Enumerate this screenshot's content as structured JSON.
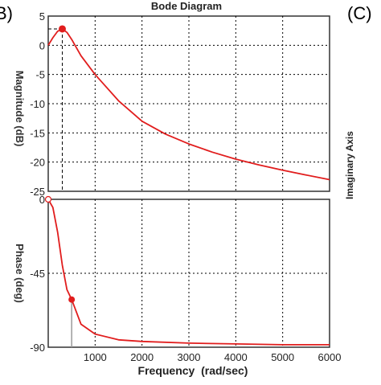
{
  "panel_labels": {
    "left": "B)",
    "right": "(C)"
  },
  "side_text": {
    "imaginary_axis": "Imaginary Axis"
  },
  "colors": {
    "curve": "#e11d1d",
    "grid": "#000000",
    "frame": "#333333",
    "marker_line": "#999999"
  },
  "chart_data": [
    {
      "type": "line",
      "title": "Bode Diagram",
      "xlabel": "",
      "ylabel": "Magnitude (dB)",
      "xlim": [
        0,
        6000
      ],
      "ylim": [
        -25,
        5
      ],
      "yticks": [
        5,
        0,
        -5,
        -10,
        -15,
        -20,
        -25
      ],
      "grid": true,
      "x": [
        0,
        100,
        200,
        300,
        400,
        500,
        700,
        1000,
        1500,
        2000,
        2500,
        3000,
        3500,
        4000,
        4500,
        5000,
        5500,
        6000
      ],
      "y": [
        0,
        1.3,
        2.4,
        2.8,
        2.2,
        1.0,
        -1.8,
        -5.0,
        -9.5,
        -13.0,
        -15.2,
        -16.9,
        -18.3,
        -19.5,
        -20.5,
        -21.4,
        -22.2,
        -23.0
      ],
      "peak_marker": {
        "x": 300,
        "y": 2.8
      }
    },
    {
      "type": "line",
      "title": "",
      "xlabel": "Frequency  (rad/sec)",
      "ylabel": "Phase (deg)",
      "xlim": [
        0,
        6000
      ],
      "ylim": [
        -90,
        0
      ],
      "yticks": [
        0,
        -45,
        -90
      ],
      "xticks": [
        1000,
        2000,
        3000,
        4000,
        5000,
        6000
      ],
      "grid": true,
      "x": [
        0,
        100,
        200,
        300,
        400,
        500,
        700,
        1000,
        1500,
        2000,
        3000,
        4000,
        5000,
        6000
      ],
      "y": [
        0,
        -5,
        -20,
        -40,
        -55,
        -61,
        -76,
        -82,
        -85.5,
        -86.5,
        -87.5,
        -88,
        -88.5,
        -88.5
      ],
      "marker": {
        "x": 500,
        "y": -61
      },
      "start_marker": {
        "x": 0,
        "y": 0
      }
    }
  ]
}
